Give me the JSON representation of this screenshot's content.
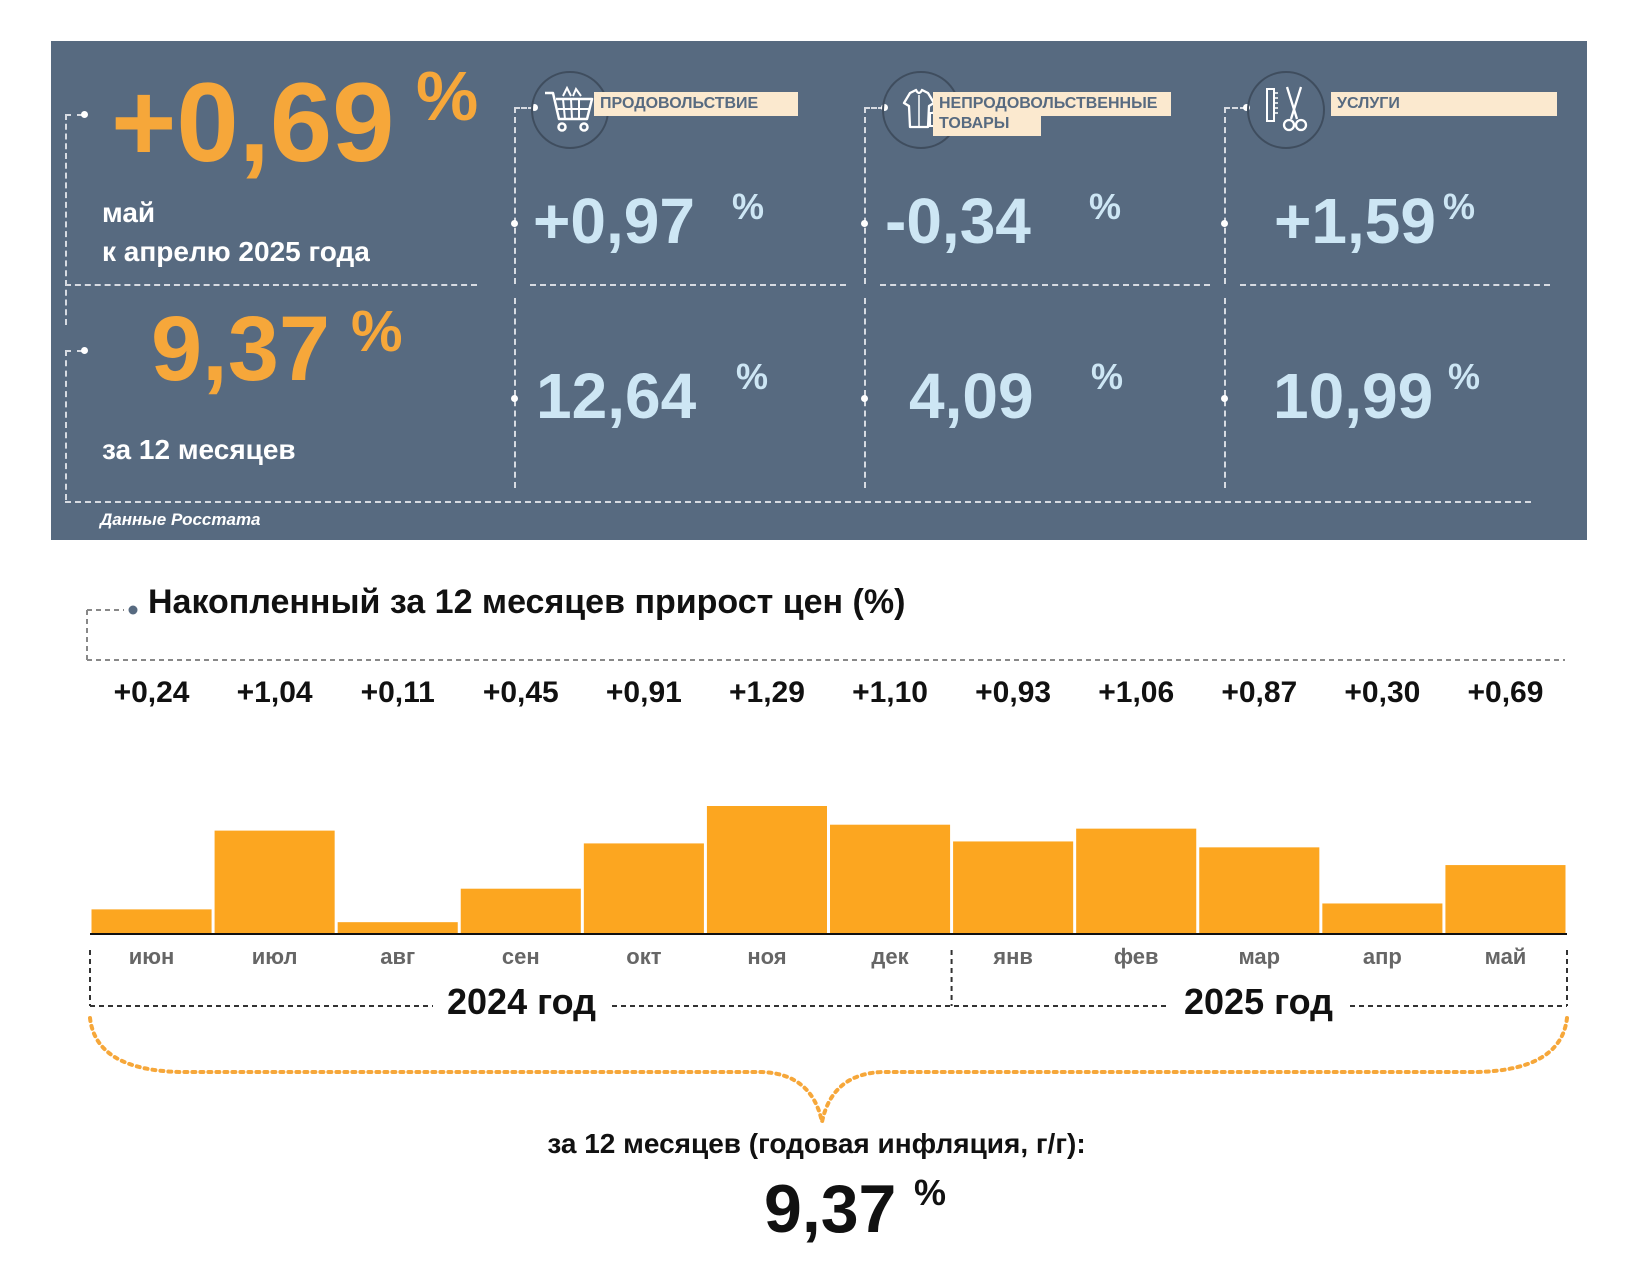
{
  "header": {
    "monthly_value": "+0,69",
    "monthly_pct": "%",
    "monthly_label_1": "май",
    "monthly_label_2": "к апрелю 2025 года",
    "annual_value": "9,37",
    "annual_pct": "%",
    "annual_label": "за 12 месяцев",
    "source": "Данные Росстата"
  },
  "categories": [
    {
      "name": "ПРОДОВОЛЬСТВИЕ",
      "name2": "",
      "icon": "shopping-cart-icon",
      "monthly": "+0,97",
      "annual": "12,64",
      "pct": "%"
    },
    {
      "name": "НЕПРОДОВОЛЬСТВЕННЫЕ",
      "name2": "ТОВАРЫ",
      "icon": "clothing-icon",
      "monthly": "-0,34",
      "annual": "4,09",
      "pct": "%"
    },
    {
      "name": "УСЛУГИ",
      "name2": "",
      "icon": "scissors-comb-icon",
      "monthly": "+1,59",
      "annual": "10,99",
      "pct": "%"
    }
  ],
  "chart_data": {
    "type": "bar",
    "title": "Накопленный за 12 месяцев прирост цен (%)",
    "categories": [
      "июн",
      "июл",
      "авг",
      "сен",
      "окт",
      "ноя",
      "дек",
      "янв",
      "фев",
      "мар",
      "апр",
      "май"
    ],
    "values": [
      0.24,
      1.04,
      0.11,
      0.45,
      0.91,
      1.29,
      1.1,
      0.93,
      1.06,
      0.87,
      0.3,
      0.69
    ],
    "value_labels": [
      "+0,24",
      "+1,04",
      "+0,11",
      "+0,45",
      "+0,91",
      "+1,29",
      "+1,10",
      "+0,93",
      "+1,06",
      "+0,87",
      "+0,30",
      "+0,69"
    ],
    "groups": [
      "2024 год",
      "2025 год"
    ],
    "summary_label": "за 12 месяцев (годовая инфляция, г/г):",
    "summary_value": "9,37",
    "summary_pct": "%"
  },
  "colors": {
    "panel": "#576a80",
    "accent_orange": "#f6a73a",
    "bar": "#fca620",
    "value_light_blue": "#cde6f4",
    "label_bg": "#fbe9cf"
  }
}
